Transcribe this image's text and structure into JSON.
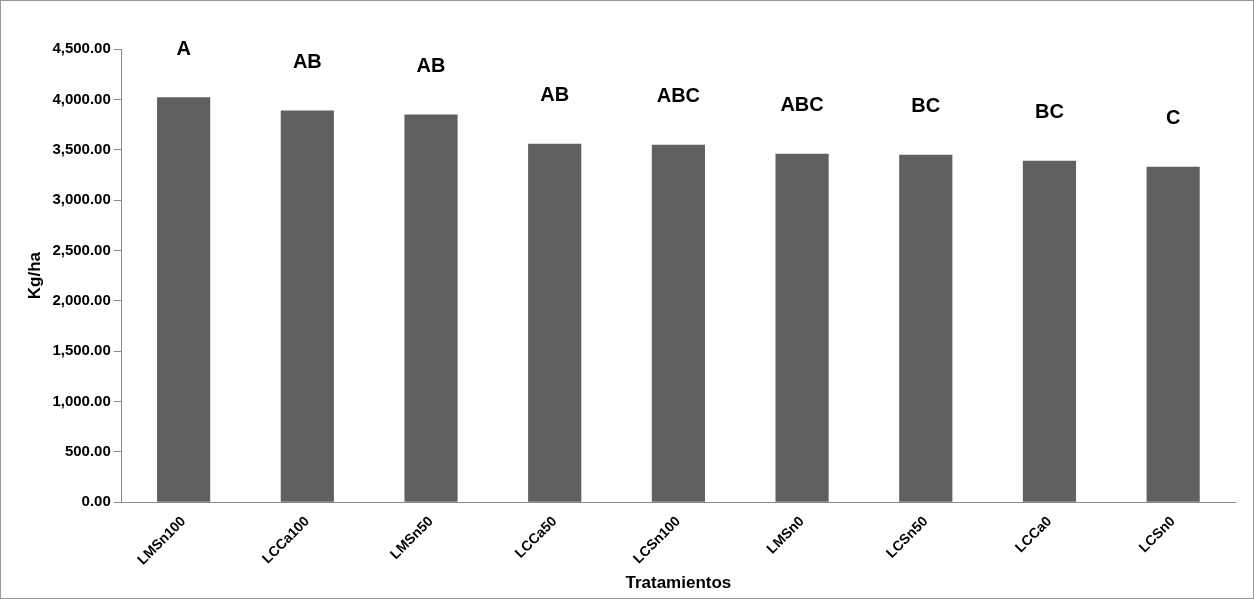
{
  "chart_data": {
    "type": "bar",
    "xlabel": "Tratamientos",
    "ylabel": "Kg/ha",
    "categories": [
      "LMSn100",
      "LCCa100",
      "LMSn50",
      "LCCa50",
      "LCSn100",
      "LMSn0",
      "LCSn50",
      "LCCa0",
      "LCSn0"
    ],
    "values": [
      4020,
      3890,
      3850,
      3560,
      3550,
      3460,
      3450,
      3390,
      3330
    ],
    "color": "#606060",
    "ylim": [
      0,
      4500
    ],
    "yticks": [
      {
        "value": 0,
        "label": "0.00"
      },
      {
        "value": 500,
        "label": "500.00"
      },
      {
        "value": 1000,
        "label": "1,000.00"
      },
      {
        "value": 1500,
        "label": "1,500.00"
      },
      {
        "value": 2000,
        "label": "2,000.00"
      },
      {
        "value": 2500,
        "label": "2,500.00"
      },
      {
        "value": 3000,
        "label": "3,000.00"
      },
      {
        "value": 3500,
        "label": "3,500.00"
      },
      {
        "value": 4000,
        "label": "4,000.00"
      },
      {
        "value": 4500,
        "label": "4,500.00"
      }
    ],
    "grid": false,
    "legend": false,
    "annotations": [
      "A",
      "AB",
      "AB",
      "AB",
      "ABC",
      "ABC",
      "BC",
      "BC",
      "C"
    ]
  }
}
